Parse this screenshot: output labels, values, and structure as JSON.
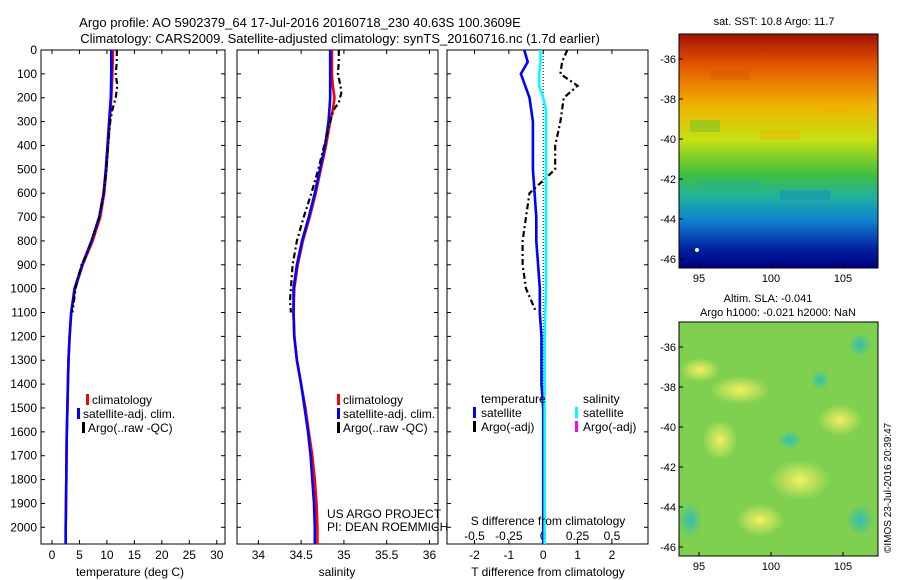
{
  "header": {
    "line1": "Argo profile: AO 5902379_64 17-Jul-2016 20160718_230 40.63S 100.3609E",
    "line2": "Climatology: CARS2009. Satellite-adjusted climatology: synTS_20160716.nc (1.7d earlier)"
  },
  "colors": {
    "climatology": "#ff0000",
    "satellite": "#0000ff",
    "argo": "#000000",
    "sal_satellite": "#00ffff",
    "sal_argo": "#ff00ff"
  },
  "depth_ticks": [
    0,
    100,
    200,
    300,
    400,
    500,
    600,
    700,
    800,
    900,
    1000,
    1100,
    1200,
    1300,
    1400,
    1500,
    1600,
    1700,
    1800,
    1900,
    2000
  ],
  "legend": {
    "climatology": "climatology",
    "satellite_adj": "satellite-adj. clim.",
    "argo": "Argo(..raw -QC)",
    "temperature": "temperature",
    "salinity": "salinity",
    "satellite": "satellite",
    "argo_adj": "Argo(-adj)"
  },
  "credits": {
    "project": "US ARGO PROJECT",
    "pi": "PI: DEAN ROEMMICH"
  },
  "maps": {
    "sst_title": "sat. SST: 10.8 Argo: 11.7",
    "sla_title1": "Altim. SLA: -0.041",
    "sla_title2": "Argo h1000: -0.021 h2000: NaN",
    "lat_ticks": [
      "-36",
      "-38",
      "-40",
      "-42",
      "-44",
      "-46"
    ],
    "lon_ticks": [
      "95",
      "100",
      "105"
    ],
    "imos_stamp": "©IMOS 23-Jul-2016 20:39:47"
  },
  "chart_data": [
    {
      "type": "line",
      "panel": "temperature",
      "xlabel": "temperature (deg C)",
      "xticks": [
        0,
        5,
        10,
        15,
        20,
        25,
        30
      ],
      "xlim": [
        -2,
        31.5
      ],
      "ylim": [
        2070,
        0
      ],
      "series": [
        {
          "name": "climatology",
          "depth": [
            0,
            100,
            200,
            300,
            400,
            500,
            600,
            700,
            800,
            900,
            1000,
            1100,
            1200,
            1300,
            1400,
            1500,
            1600,
            1700,
            1800,
            1900,
            2000,
            2070
          ],
          "values": [
            11.1,
            11.0,
            10.8,
            10.5,
            10.2,
            9.9,
            9.5,
            8.8,
            7.4,
            5.6,
            4.2,
            3.5,
            3.2,
            3.0,
            2.9,
            2.8,
            2.7,
            2.65,
            2.6,
            2.55,
            2.5,
            2.5
          ]
        },
        {
          "name": "satellite-adj. clim.",
          "depth": [
            0,
            100,
            200,
            300,
            400,
            500,
            600,
            700,
            800,
            900,
            1000,
            1100,
            1200,
            1300,
            1400,
            1500,
            1600,
            1700,
            1800,
            1900,
            2000,
            2070
          ],
          "values": [
            10.8,
            10.8,
            10.7,
            10.4,
            10.1,
            9.8,
            9.4,
            8.6,
            7.2,
            5.5,
            4.1,
            3.5,
            3.2,
            3.0,
            2.9,
            2.8,
            2.7,
            2.65,
            2.6,
            2.55,
            2.5,
            2.5
          ]
        },
        {
          "name": "Argo(..raw -QC)",
          "depth": [
            0,
            50,
            100,
            150,
            200,
            250,
            300,
            400,
            500,
            600,
            700,
            800,
            850,
            900,
            950,
            1000,
            1050,
            1100
          ],
          "values": [
            11.8,
            11.8,
            11.6,
            11.9,
            11.6,
            11.0,
            10.6,
            10.2,
            9.9,
            9.4,
            8.6,
            7.2,
            6.4,
            5.4,
            4.8,
            4.3,
            4.0,
            3.7
          ]
        }
      ]
    },
    {
      "type": "line",
      "panel": "salinity",
      "xlabel": "salinity",
      "xticks": [
        34,
        34.5,
        35,
        35.5,
        36
      ],
      "xlim": [
        33.75,
        36.1
      ],
      "ylim": [
        2070,
        0
      ],
      "series": [
        {
          "name": "climatology",
          "depth": [
            0,
            100,
            150,
            200,
            250,
            300,
            400,
            500,
            600,
            700,
            800,
            900,
            1000,
            1100,
            1200,
            1300,
            1400,
            1500,
            1600,
            1700,
            1800,
            1900,
            2000,
            2070
          ],
          "values": [
            34.86,
            34.86,
            34.87,
            34.89,
            34.87,
            34.84,
            34.79,
            34.73,
            34.67,
            34.6,
            34.52,
            34.46,
            34.42,
            34.41,
            34.42,
            34.45,
            34.5,
            34.55,
            34.59,
            34.63,
            34.66,
            34.68,
            34.69,
            34.69
          ]
        },
        {
          "name": "satellite-adj. clim.",
          "depth": [
            0,
            100,
            200,
            250,
            300,
            400,
            500,
            600,
            700,
            800,
            900,
            1000,
            1100,
            1200,
            1300,
            1400,
            1500,
            1600,
            1700,
            1800,
            1900,
            2000,
            2070
          ],
          "values": [
            34.84,
            34.84,
            34.84,
            34.83,
            34.82,
            34.78,
            34.72,
            34.66,
            34.59,
            34.51,
            34.45,
            34.41,
            34.41,
            34.42,
            34.45,
            34.5,
            34.54,
            34.58,
            34.61,
            34.63,
            34.65,
            34.66,
            34.66
          ]
        },
        {
          "name": "Argo(..raw -QC)",
          "depth": [
            0,
            50,
            100,
            150,
            180,
            220,
            250,
            300,
            400,
            500,
            600,
            700,
            800,
            900,
            1000,
            1050,
            1100
          ],
          "values": [
            34.94,
            34.94,
            34.93,
            34.96,
            34.97,
            34.94,
            34.88,
            34.84,
            34.77,
            34.7,
            34.62,
            34.53,
            34.45,
            34.4,
            34.38,
            34.37,
            34.38
          ]
        }
      ]
    },
    {
      "type": "line",
      "panel": "difference",
      "xlabel": "T difference from climatology",
      "xlabel_top": "S difference from climatology",
      "xticks": [
        -2,
        -1,
        0,
        1,
        2
      ],
      "xticks_top": [
        "-0.5",
        "-0.25",
        "0",
        "0.25",
        "0.5"
      ],
      "xlim": [
        -2.8,
        3.05
      ],
      "ylim": [
        2070,
        0
      ],
      "series": [
        {
          "name": "temperature satellite",
          "depth": [
            0,
            50,
            100,
            200,
            300,
            400,
            500,
            600,
            700,
            800,
            900,
            1000,
            1100,
            1200,
            1300,
            1400,
            1500,
            1600,
            1700,
            1800,
            1900,
            2000,
            2070
          ],
          "values": [
            -0.55,
            -0.45,
            -0.65,
            -0.4,
            -0.3,
            -0.3,
            -0.3,
            -0.25,
            -0.2,
            -0.2,
            -0.15,
            -0.1,
            -0.1,
            -0.05,
            -0.05,
            -0.05,
            0,
            0,
            0,
            0,
            0,
            0,
            0
          ]
        },
        {
          "name": "temperature Argo(-adj)",
          "depth": [
            0,
            50,
            100,
            150,
            200,
            300,
            400,
            500,
            600,
            700,
            800,
            900,
            1000,
            1100
          ],
          "values": [
            0.7,
            0.55,
            0.5,
            1.0,
            0.6,
            0.5,
            0.35,
            0.35,
            -0.4,
            -0.5,
            -0.6,
            -0.6,
            -0.5,
            -0.2
          ]
        },
        {
          "name": "salinity satellite",
          "depth": [
            0,
            50,
            100,
            150,
            200,
            250,
            300,
            400,
            500,
            600,
            800,
            1000,
            1200,
            1400,
            1600,
            1800,
            2000,
            2070
          ],
          "values": [
            -0.02,
            -0.02,
            -0.03,
            -0.03,
            0.0,
            0.02,
            0.02,
            0.02,
            0.02,
            0.02,
            0.02,
            0.02,
            0.01,
            0.01,
            0.01,
            0.01,
            0.01,
            0.01
          ]
        }
      ]
    }
  ]
}
